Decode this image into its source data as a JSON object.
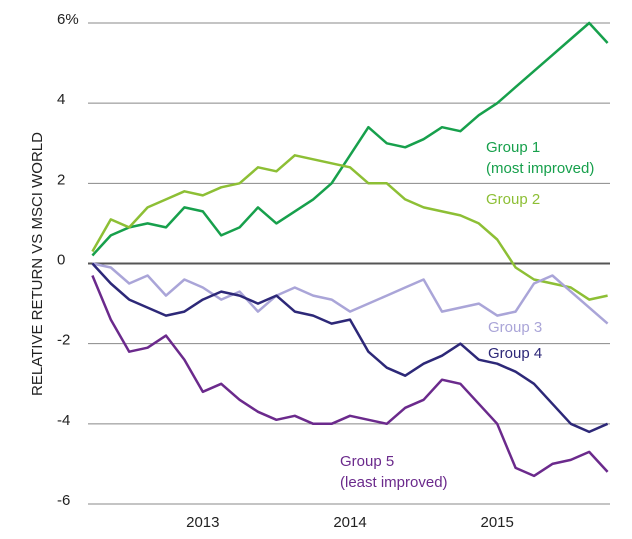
{
  "chart_data": {
    "type": "line",
    "ylabel": "RELATIVE RETURN VS MSCI WORLD",
    "x": [
      2012.25,
      2012.375,
      2012.5,
      2012.625,
      2012.75,
      2012.875,
      2013,
      2013.125,
      2013.25,
      2013.375,
      2013.5,
      2013.625,
      2013.75,
      2013.875,
      2014,
      2014.125,
      2014.25,
      2014.375,
      2014.5,
      2014.625,
      2014.75,
      2014.875,
      2015,
      2015.125,
      2015.25,
      2015.375,
      2015.5,
      2015.625,
      2015.75
    ],
    "xlim": [
      2012.22,
      2015.78
    ],
    "xticks": [
      2013,
      2014,
      2015
    ],
    "ylim": [
      -6,
      6
    ],
    "yticks": [
      -6,
      -4,
      -2,
      0,
      2,
      4,
      {
        "value": 6,
        "label": "6%"
      }
    ],
    "grid": true,
    "series": [
      {
        "name": "Group 1",
        "note": "(most improved)",
        "color": "#17a04c",
        "values": [
          0.2,
          0.7,
          0.9,
          1.0,
          0.9,
          1.4,
          1.3,
          0.7,
          0.9,
          1.4,
          1.0,
          1.3,
          1.6,
          2.0,
          2.7,
          3.4,
          3.0,
          2.9,
          3.1,
          3.4,
          3.3,
          3.7,
          4.0,
          4.4,
          4.8,
          5.2,
          5.6,
          6.0,
          5.5
        ]
      },
      {
        "name": "Group 2",
        "color": "#8dbf35",
        "values": [
          0.3,
          1.1,
          0.9,
          1.4,
          1.6,
          1.8,
          1.7,
          1.9,
          2.0,
          2.4,
          2.3,
          2.7,
          2.6,
          2.5,
          2.4,
          2.0,
          2.0,
          1.6,
          1.4,
          1.3,
          1.2,
          1.0,
          0.6,
          -0.1,
          -0.4,
          -0.5,
          -0.6,
          -0.9,
          -0.8
        ]
      },
      {
        "name": "Group 3",
        "color": "#aaa5d8",
        "values": [
          0.0,
          -0.1,
          -0.5,
          -0.3,
          -0.8,
          -0.4,
          -0.6,
          -0.9,
          -0.7,
          -1.2,
          -0.8,
          -0.6,
          -0.8,
          -0.9,
          -1.2,
          -1.0,
          -0.8,
          -0.6,
          -0.4,
          -1.2,
          -1.1,
          -1.0,
          -1.3,
          -1.2,
          -0.5,
          -0.3,
          -0.7,
          -1.1,
          -1.5
        ]
      },
      {
        "name": "Group 4",
        "color": "#2d2878",
        "values": [
          0.0,
          -0.5,
          -0.9,
          -1.1,
          -1.3,
          -1.2,
          -0.9,
          -0.7,
          -0.8,
          -1.0,
          -0.8,
          -1.2,
          -1.3,
          -1.5,
          -1.4,
          -2.2,
          -2.6,
          -2.8,
          -2.5,
          -2.3,
          -2.0,
          -2.4,
          -2.5,
          -2.7,
          -3.0,
          -3.5,
          -4.0,
          -4.2,
          -4.0
        ]
      },
      {
        "name": "Group 5",
        "note": "(least improved)",
        "color": "#6b2a8c",
        "values": [
          -0.3,
          -1.4,
          -2.2,
          -2.1,
          -1.8,
          -2.4,
          -3.2,
          -3.0,
          -3.4,
          -3.7,
          -3.9,
          -3.8,
          -4.0,
          -4.0,
          -3.8,
          -3.9,
          -4.0,
          -3.6,
          -3.4,
          -2.9,
          -3.0,
          -3.5,
          -4.0,
          -5.1,
          -5.3,
          -5.0,
          -4.9,
          -4.7,
          -5.2
        ]
      }
    ]
  }
}
